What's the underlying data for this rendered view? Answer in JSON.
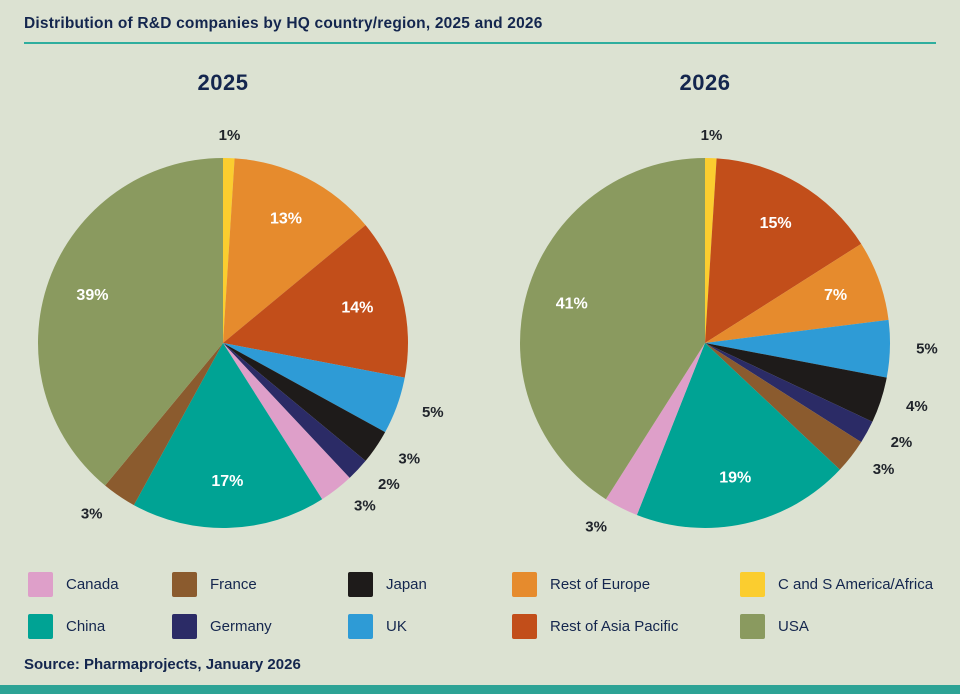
{
  "page_title": "Distribution of R&D companies by HQ country/region, 2025 and 2026",
  "source": "Source: Pharmaprojects, January 2026",
  "colors": {
    "background": "#dce2d2",
    "heading_text": "#14264e",
    "rule_teal": "#2fae9e",
    "label_outside": "#20242b",
    "label_inside": "#ffffff",
    "footer_bar": "#2da395"
  },
  "legend": {
    "items": [
      {
        "label": "Canada",
        "color": "#de9fc9"
      },
      {
        "label": "France",
        "color": "#8b5b2e"
      },
      {
        "label": "Japan",
        "color": "#1e1b1a"
      },
      {
        "label": "Rest of Europe",
        "color": "#e68b2d"
      },
      {
        "label": "C and S America/Africa",
        "color": "#fbcd2f"
      },
      {
        "label": "China",
        "color": "#00a394"
      },
      {
        "label": "Germany",
        "color": "#2b2b66"
      },
      {
        "label": "UK",
        "color": "#2e9bd6"
      },
      {
        "label": "Rest of Asia Pacific",
        "color": "#c24e1a"
      },
      {
        "label": "USA",
        "color": "#8a9a5f"
      }
    ]
  },
  "chart_data": [
    {
      "type": "pie",
      "title": "2025",
      "start_angle_deg": 0,
      "direction": "clockwise",
      "slices": [
        {
          "label": "C and S America/Africa",
          "value": 1,
          "color": "#fbcd2f"
        },
        {
          "label": "Rest of Europe",
          "value": 13,
          "color": "#e68b2d"
        },
        {
          "label": "Rest of Asia Pacific",
          "value": 14,
          "color": "#c24e1a"
        },
        {
          "label": "UK",
          "value": 5,
          "color": "#2e9bd6"
        },
        {
          "label": "Japan",
          "value": 3,
          "color": "#1e1b1a"
        },
        {
          "label": "Germany",
          "value": 2,
          "color": "#2b2b66"
        },
        {
          "label": "Canada",
          "value": 3,
          "color": "#de9fc9"
        },
        {
          "label": "China",
          "value": 17,
          "color": "#00a394"
        },
        {
          "label": "France",
          "value": 3,
          "color": "#8b5b2e"
        },
        {
          "label": "USA",
          "value": 39,
          "color": "#8a9a5f"
        }
      ]
    },
    {
      "type": "pie",
      "title": "2026",
      "start_angle_deg": 0,
      "direction": "clockwise",
      "slices": [
        {
          "label": "C and S America/Africa",
          "value": 1,
          "color": "#fbcd2f"
        },
        {
          "label": "Rest of Asia Pacific",
          "value": 15,
          "color": "#c24e1a"
        },
        {
          "label": "Rest of Europe",
          "value": 7,
          "color": "#e68b2d"
        },
        {
          "label": "UK",
          "value": 5,
          "color": "#2e9bd6"
        },
        {
          "label": "Japan",
          "value": 4,
          "color": "#1e1b1a"
        },
        {
          "label": "Germany",
          "value": 2,
          "color": "#2b2b66"
        },
        {
          "label": "France",
          "value": 3,
          "color": "#8b5b2e"
        },
        {
          "label": "China",
          "value": 19,
          "color": "#00a394"
        },
        {
          "label": "Canada",
          "value": 3,
          "color": "#de9fc9"
        },
        {
          "label": "USA",
          "value": 41,
          "color": "#8a9a5f"
        }
      ]
    }
  ]
}
